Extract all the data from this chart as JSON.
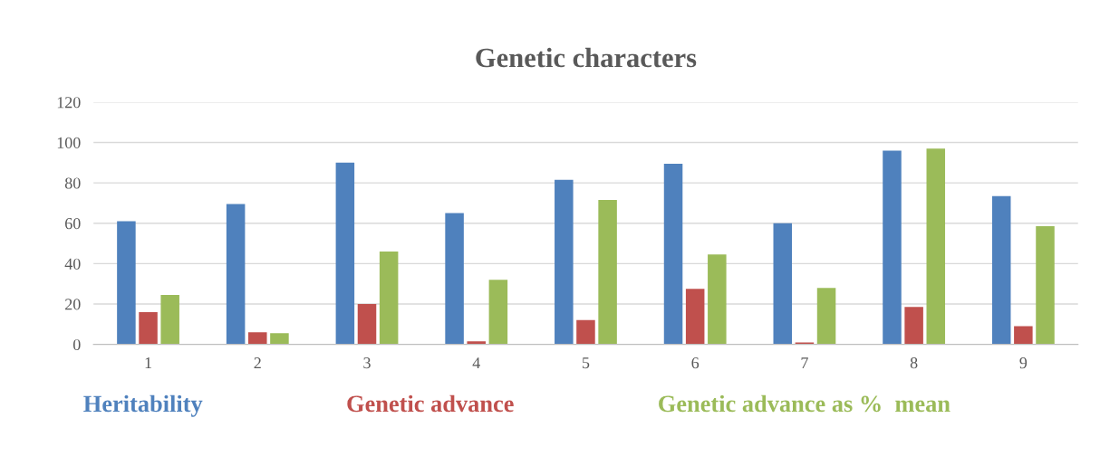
{
  "chart_data": {
    "type": "bar",
    "title": "Genetic characters",
    "categories": [
      "1",
      "2",
      "3",
      "4",
      "5",
      "6",
      "7",
      "8",
      "9"
    ],
    "series": [
      {
        "name": "Heritability",
        "color": "#4f81bd",
        "values": [
          61,
          69.5,
          90,
          65,
          81.5,
          89.5,
          60,
          96,
          73.5
        ]
      },
      {
        "name": "Genetic advance",
        "color": "#c0504d",
        "values": [
          16,
          6,
          20,
          1.5,
          12,
          27.5,
          1,
          18.5,
          9
        ]
      },
      {
        "name": "Genetic advance as %  mean",
        "color": "#9bbb59",
        "values": [
          24.5,
          5.5,
          46,
          32,
          71.5,
          44.5,
          28,
          97,
          58.5
        ]
      }
    ],
    "ylim": [
      0,
      120
    ],
    "yticks": [
      0,
      20,
      40,
      60,
      80,
      100,
      120
    ],
    "grid": "y",
    "legend": "bottom"
  }
}
